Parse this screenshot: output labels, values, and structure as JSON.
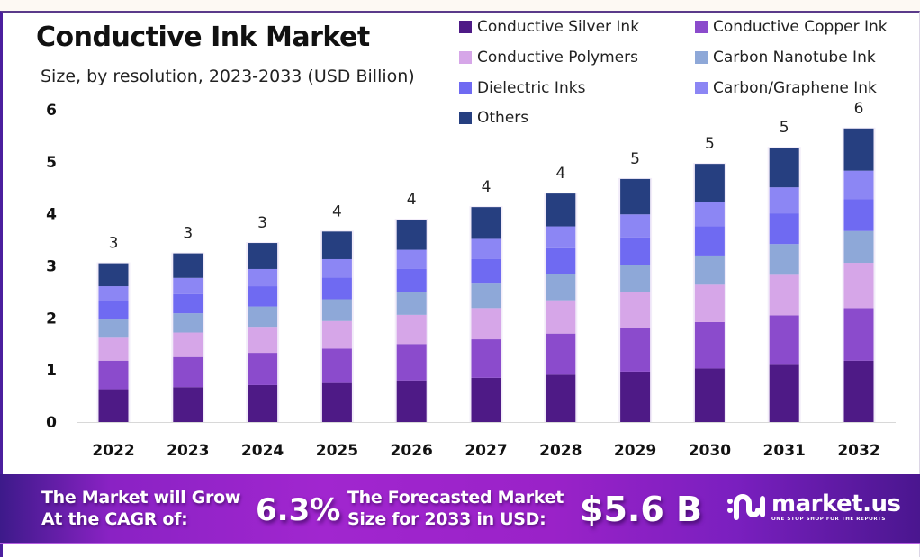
{
  "header": {
    "title": "Conductive Ink Market",
    "subtitle": "Size, by resolution, 2023-2033 (USD Billion)"
  },
  "colors": {
    "Conductive Silver Ink": "#4e1a86",
    "Conductive Copper Ink": "#8b4bcc",
    "Conductive Polymers": "#d6a6e8",
    "Carbon Nanotube Ink": "#8ea8d8",
    "Dielectric Inks": "#6f6af2",
    "Carbon/Graphene Ink": "#8c86f4",
    "Others": "#263f80"
  },
  "chart_data": {
    "type": "bar",
    "stacked": true,
    "title": "Conductive Ink Market",
    "subtitle": "Size, by resolution, 2023-2033 (USD Billion)",
    "xlabel": "",
    "ylabel": "",
    "ylim": [
      0,
      6
    ],
    "yticks": [
      "0",
      "1",
      "2",
      "3",
      "4",
      "5",
      "6"
    ],
    "grid": false,
    "legend_position": "top-right",
    "categories": [
      "2022",
      "2023",
      "2024",
      "2025",
      "2026",
      "2027",
      "2028",
      "2029",
      "2030",
      "2031",
      "2032"
    ],
    "totals_labels": [
      "3",
      "3",
      "3",
      "4",
      "4",
      "4",
      "4",
      "5",
      "5",
      "5",
      "6"
    ],
    "series": [
      {
        "name": "Conductive Silver Ink",
        "values": [
          0.63,
          0.67,
          0.71,
          0.75,
          0.8,
          0.85,
          0.91,
          0.97,
          1.03,
          1.1,
          1.18
        ]
      },
      {
        "name": "Conductive Copper Ink",
        "values": [
          0.55,
          0.58,
          0.62,
          0.66,
          0.7,
          0.74,
          0.79,
          0.84,
          0.89,
          0.95,
          1.01
        ]
      },
      {
        "name": "Conductive Polymers",
        "values": [
          0.44,
          0.47,
          0.5,
          0.53,
          0.56,
          0.6,
          0.64,
          0.68,
          0.72,
          0.78,
          0.87
        ]
      },
      {
        "name": "Carbon Nanotube Ink",
        "values": [
          0.35,
          0.37,
          0.39,
          0.42,
          0.44,
          0.47,
          0.5,
          0.53,
          0.56,
          0.59,
          0.61
        ]
      },
      {
        "name": "Dielectric Inks",
        "values": [
          0.35,
          0.37,
          0.39,
          0.42,
          0.44,
          0.47,
          0.5,
          0.53,
          0.56,
          0.59,
          0.61
        ]
      },
      {
        "name": "Carbon/Graphene Ink",
        "values": [
          0.29,
          0.31,
          0.33,
          0.35,
          0.37,
          0.39,
          0.42,
          0.44,
          0.47,
          0.5,
          0.55
        ]
      },
      {
        "name": "Others",
        "values": [
          0.44,
          0.47,
          0.5,
          0.53,
          0.58,
          0.61,
          0.63,
          0.68,
          0.73,
          0.76,
          0.81
        ]
      }
    ]
  },
  "legend": [
    {
      "label": "Conductive Silver Ink",
      "color": "#4e1a86"
    },
    {
      "label": "Conductive Copper Ink",
      "color": "#8b4bcc"
    },
    {
      "label": "Conductive Polymers",
      "color": "#d6a6e8"
    },
    {
      "label": "Carbon Nanotube Ink",
      "color": "#8ea8d8"
    },
    {
      "label": "Dielectric Inks",
      "color": "#6f6af2"
    },
    {
      "label": "Carbon/Graphene Ink",
      "color": "#8c86f4"
    },
    {
      "label": "Others",
      "color": "#263f80"
    }
  ],
  "banner": {
    "cagr_text_line1": "The Market will Grow",
    "cagr_text_line2": "At the CAGR of:",
    "cagr_value": "6.3%",
    "forecast_text_line1": "The Forecasted Market",
    "forecast_text_line2": "Size for 2033 in USD:",
    "forecast_value": "$5.6 B",
    "logo_name": "market.us",
    "logo_tagline": "ONE STOP SHOP FOR THE REPORTS"
  }
}
